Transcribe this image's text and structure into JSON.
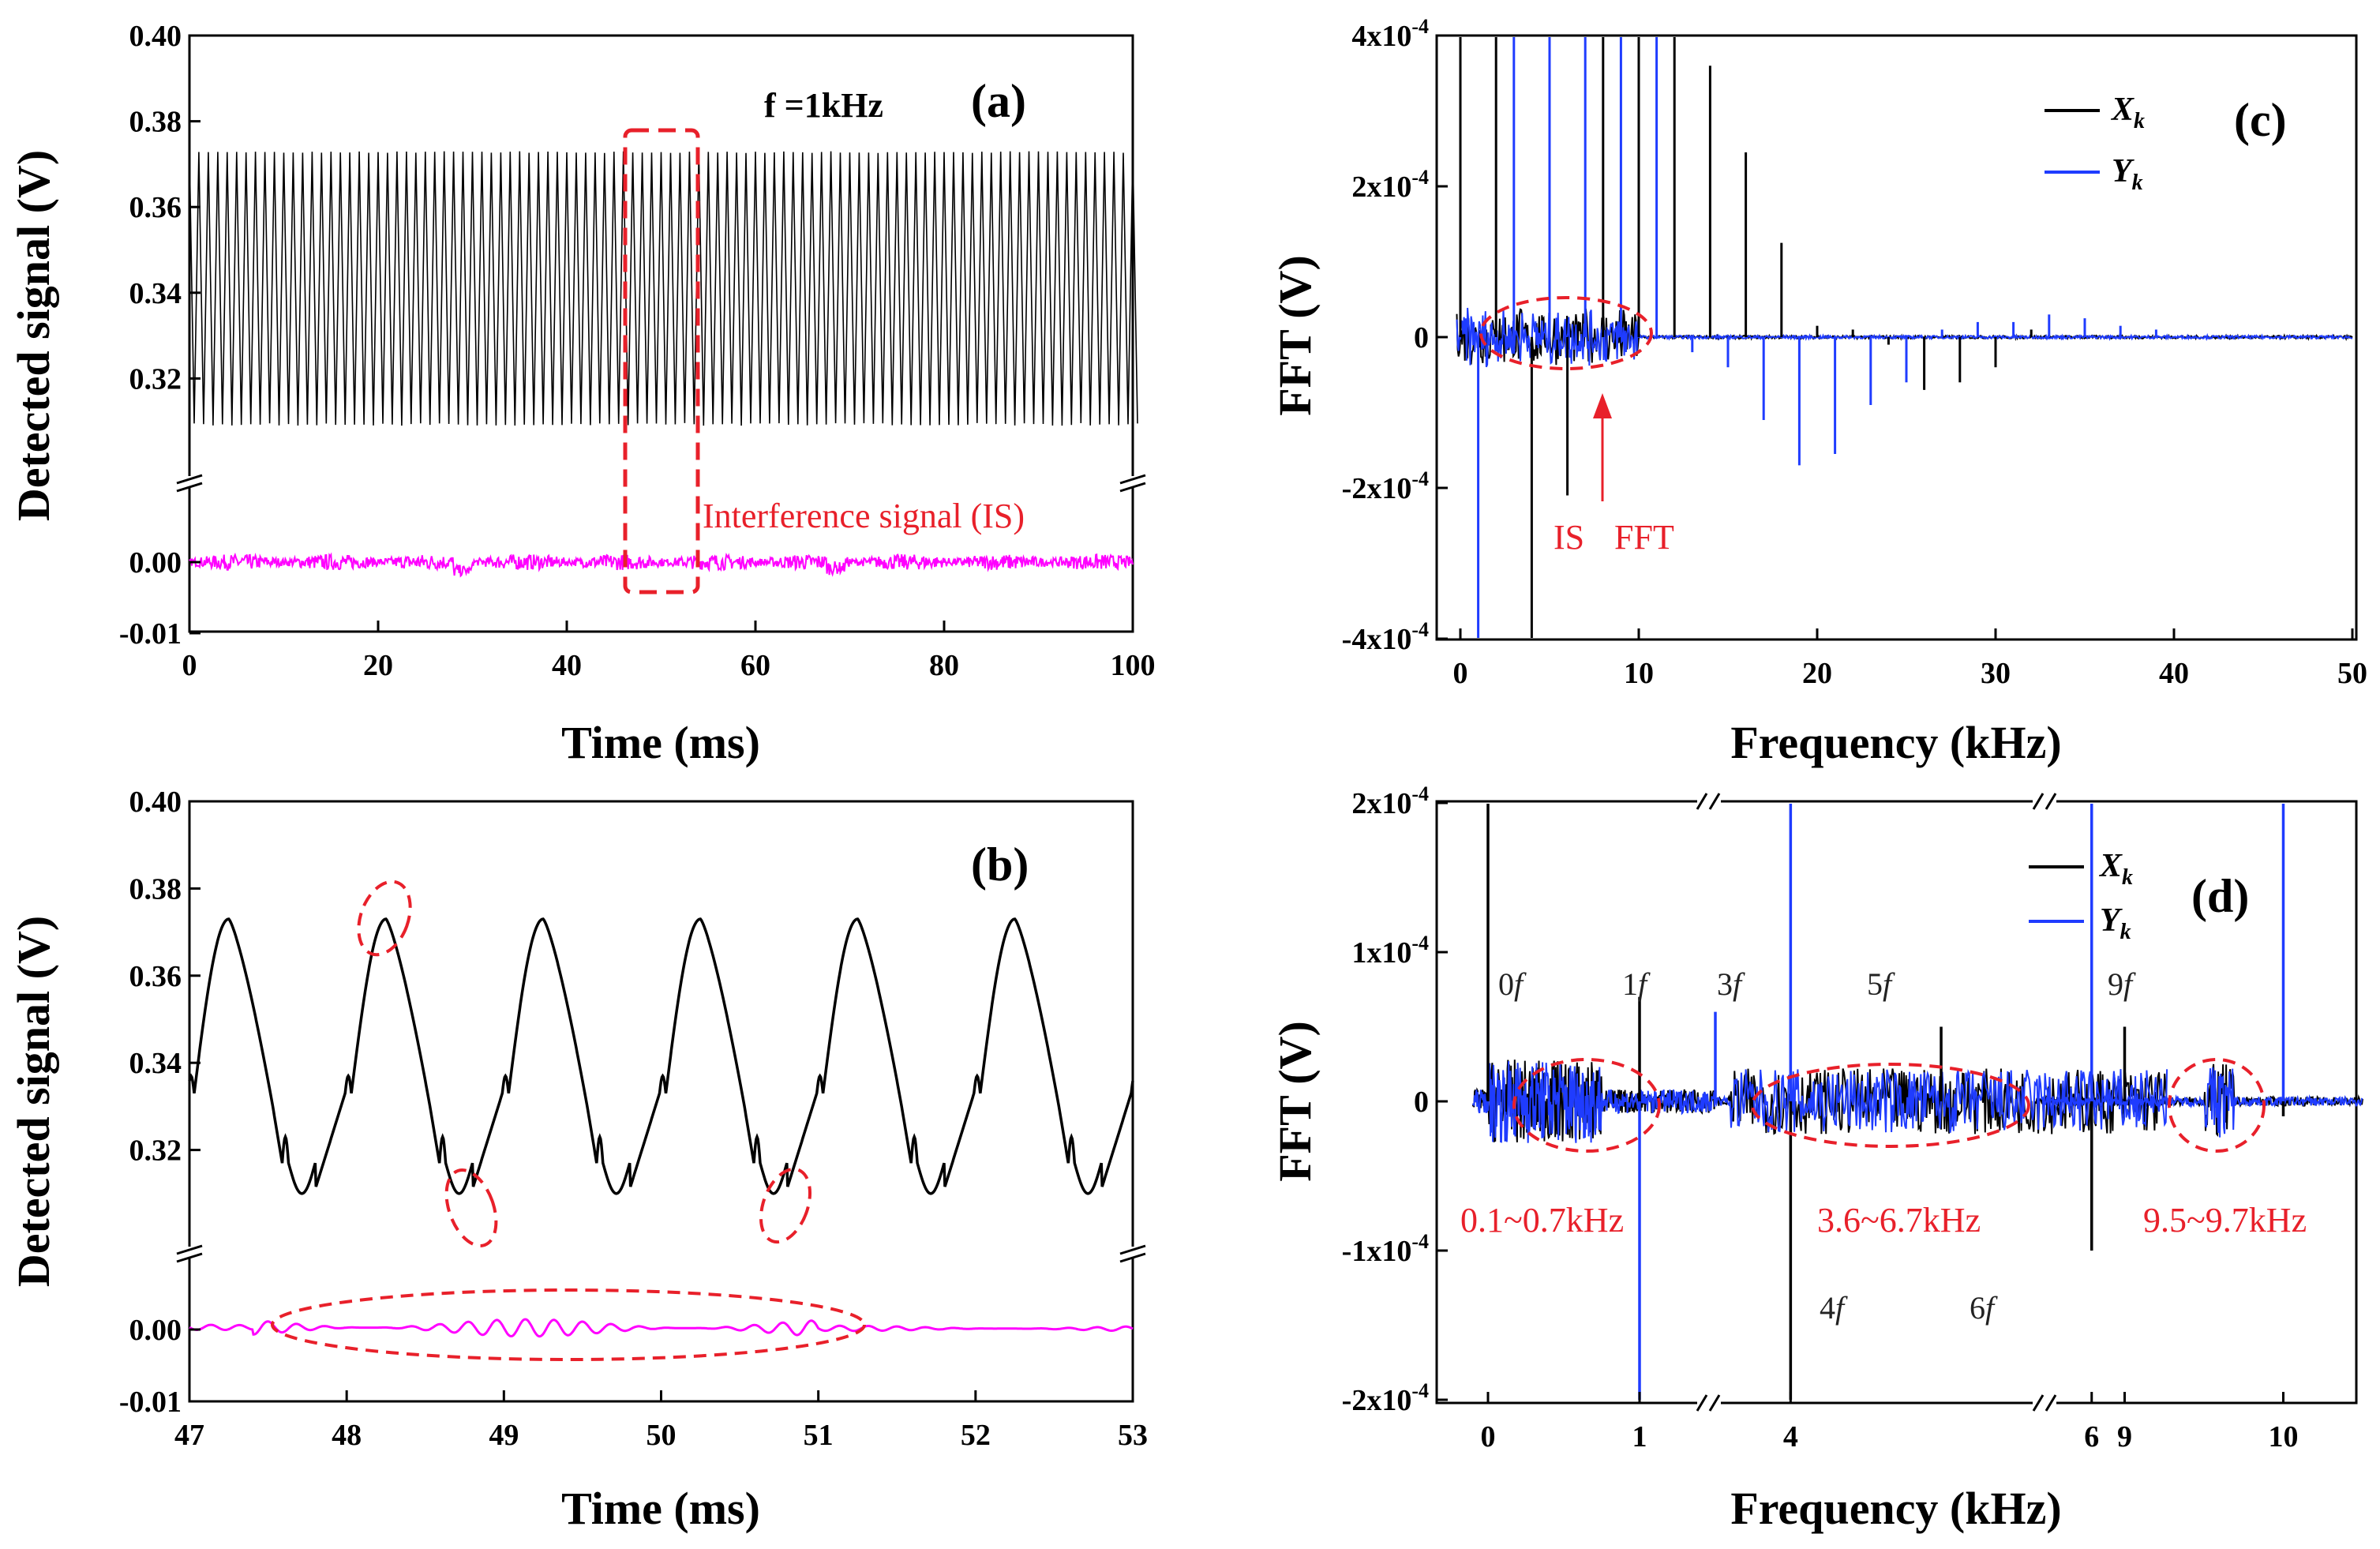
{
  "colors": {
    "black": "#000000",
    "blue": "#1f3cff",
    "magenta": "#ff00ff",
    "red": "#e8202a"
  },
  "panel_a": {
    "label": "(a)",
    "freq_label": "f =1kHz",
    "annotation": "Interference signal (IS)",
    "xlabel": "Time (ms)",
    "ylabel": "Detected signal (V)",
    "xticks": [
      "0",
      "20",
      "40",
      "60",
      "80",
      "100"
    ],
    "yticks": [
      "0.40",
      "0.38",
      "0.36",
      "0.34",
      "0.32",
      "0.00",
      "-0.01"
    ]
  },
  "panel_b": {
    "label": "(b)",
    "xlabel": "Time (ms)",
    "ylabel": "Detected signal (V)",
    "xticks": [
      "47",
      "48",
      "49",
      "50",
      "51",
      "52",
      "53"
    ],
    "yticks": [
      "0.40",
      "0.38",
      "0.36",
      "0.34",
      "0.32",
      "0.00",
      "-0.01"
    ]
  },
  "panel_c": {
    "label": "(c)",
    "annotation_is": "IS",
    "annotation_fft": "FFT",
    "xlabel": "Frequency (kHz)",
    "ylabel": "FFT (V)",
    "xticks": [
      "0",
      "10",
      "20",
      "30",
      "40",
      "50"
    ],
    "yticks": [
      "4x10-4",
      "2x10-4",
      "0",
      "-2x10-4",
      "-4x10-4"
    ],
    "legend": [
      "Xk",
      "Yk"
    ]
  },
  "panel_d": {
    "label": "(d)",
    "xlabel": "Frequency (kHz)",
    "ylabel": "FFT (V)",
    "xticks": [
      "0",
      "1",
      "4",
      "6",
      "9",
      "10"
    ],
    "yticks": [
      "2x10-4",
      "1x10-4",
      "0",
      "-1x10-4",
      "-2x10-4"
    ],
    "legend": [
      "Xk",
      "Yk"
    ],
    "harmonics": [
      "0f",
      "1f",
      "3f",
      "5f",
      "9f",
      "4f",
      "6f"
    ],
    "ranges": [
      "0.1~0.7kHz",
      "3.6~6.7kHz",
      "9.5~9.7kHz"
    ]
  },
  "chart_data": [
    {
      "type": "line",
      "panel": "(a)",
      "xlabel": "Time (ms)",
      "ylabel": "Detected signal (V)",
      "xlim": [
        0,
        100
      ],
      "ylim_upper": [
        0.3,
        0.4
      ],
      "ylim_lower": [
        -0.01,
        0.01
      ],
      "series": [
        {
          "name": "detected signal",
          "frequency_kHz": 1,
          "min": 0.309,
          "max": 0.373
        },
        {
          "name": "Interference signal (IS)",
          "mean": 0.0,
          "amplitude": 0.0008
        }
      ],
      "highlight_window_ms": [
        47,
        53
      ]
    },
    {
      "type": "line",
      "panel": "(b)",
      "xlabel": "Time (ms)",
      "ylabel": "Detected signal (V)",
      "xlim": [
        47,
        53
      ],
      "ylim_upper": [
        0.3,
        0.4
      ],
      "ylim_lower": [
        -0.01,
        0.01
      ],
      "series": [
        {
          "name": "detected signal",
          "period_ms": 1,
          "peaks_ms": [
            47.25,
            48.25,
            49.25,
            50.25,
            51.25,
            52.25
          ],
          "peak": 0.373,
          "trough": 0.31
        },
        {
          "name": "IS",
          "mean": 0.0,
          "amplitude": 0.002
        }
      ]
    },
    {
      "type": "bar",
      "panel": "(c)",
      "xlabel": "Frequency (kHz)",
      "ylabel": "FFT (V)",
      "xlim": [
        -1.5,
        50
      ],
      "ylim": [
        -0.0004,
        0.0004
      ],
      "series": [
        {
          "name": "Xk",
          "x": [
            0,
            2,
            4,
            6,
            8,
            10,
            12,
            14,
            16,
            18,
            20,
            22,
            24,
            26,
            28,
            30,
            32
          ],
          "values": [
            0.0004,
            0.0004,
            -0.0004,
            -0.00021,
            0.0004,
            0.0004,
            0.0004,
            0.00036,
            0.000245,
            0.000125,
            1.5e-05,
            1e-05,
            -1e-05,
            -7e-05,
            -6e-05,
            -4e-05,
            1e-05
          ]
        },
        {
          "name": "Yk",
          "x": [
            1,
            3,
            5,
            7,
            9,
            11,
            13,
            15,
            17,
            19,
            21,
            23,
            25,
            27,
            29,
            31,
            33,
            35,
            37,
            39
          ],
          "values": [
            -0.0004,
            0.0004,
            0.0004,
            0.0004,
            0.0004,
            0.0004,
            -2e-05,
            -4e-05,
            -0.00011,
            -0.00017,
            -0.000155,
            -9e-05,
            -6e-05,
            1e-05,
            2e-05,
            2e-05,
            3e-05,
            2.5e-05,
            1.5e-05,
            1e-05
          ]
        }
      ]
    },
    {
      "type": "bar",
      "panel": "(d)",
      "xlabel": "Frequency (kHz)",
      "ylabel": "FFT (V)",
      "ylim": [
        -0.0002,
        0.0002
      ],
      "axis_breaks_kHz": [
        [
          1.5,
          3.5
        ],
        [
          6.5,
          8.5
        ]
      ],
      "series": [
        {
          "name": "Xk",
          "x": [
            0,
            1,
            4,
            5,
            6,
            9,
            10
          ],
          "values": [
            0.0002,
            7e-05,
            -0.0002,
            5e-05,
            -0.0001,
            5e-05,
            -1e-05
          ]
        },
        {
          "name": "Yk",
          "x": [
            1,
            3,
            4,
            6,
            10
          ],
          "values": [
            -0.0002,
            6e-05,
            0.0002,
            0.0002,
            0.0002
          ]
        }
      ]
    }
  ]
}
